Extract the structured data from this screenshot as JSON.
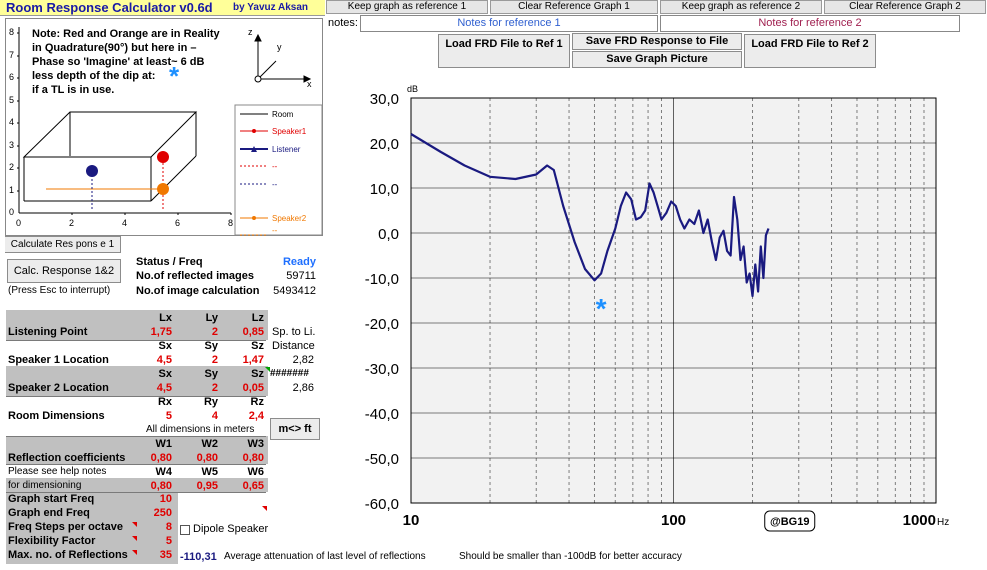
{
  "app": {
    "title": "Room Response Calculator  v0.6d",
    "author": "by Yavuz Aksan"
  },
  "toolbar": {
    "keep_ref1": "Keep graph as reference 1",
    "clear_ref1": "Clear Reference Graph 1",
    "keep_ref2": "Keep graph as reference 2",
    "clear_ref2": "Clear Reference Graph 2"
  },
  "notes": {
    "label": "notes:",
    "ref1": "Notes for reference 1",
    "ref2": "Notes for reference 2"
  },
  "buttons": {
    "load_ref1": "Load FRD File to Ref 1",
    "save_frd": "Save FRD Response to File",
    "save_pic": "Save Graph Picture",
    "load_ref2": "Load FRD File to Ref 2",
    "calc1": "Calculate Res pons e 1",
    "calc12": "Calc. Response 1&2",
    "unit_toggle": "m<> ft",
    "esc_hint": "(Press Esc to interrupt)"
  },
  "note_text": {
    "line1": "Note: Red and Orange are in Reality",
    "line2": "in Quadrature(90°) but here in –",
    "line3": "Phase so 'Imagine'  at least~ 6 dB",
    "line4": "less depth of the dip at:",
    "line5": "if a TL is in use."
  },
  "room_plot": {
    "y_ticks": [
      "8",
      "7",
      "6",
      "5",
      "4",
      "3",
      "2",
      "1",
      "0"
    ],
    "x_ticks": [
      "0",
      "2",
      "4",
      "6",
      "8"
    ],
    "axis_z": "z",
    "axis_y": "y",
    "axis_x": "x",
    "legend": [
      "Room",
      "Speaker1",
      "Listener",
      "--",
      "--",
      "Speaker2",
      "--"
    ],
    "colors": {
      "room": "#000000",
      "speaker1": "#e00000",
      "listener": "#1a1a80",
      "speaker2": "#f07800"
    }
  },
  "status": {
    "label": "Status / Freq",
    "value": "Ready",
    "reflected_label": "No.of reflected images",
    "reflected_value": "59711",
    "image_calc_label": "No.of image calculation",
    "image_calc_value": "5493412"
  },
  "table": {
    "listening": {
      "label": "Listening Point",
      "h": [
        "Lx",
        "Ly",
        "Lz"
      ],
      "v": [
        "1,75",
        "2",
        "0,85"
      ]
    },
    "sp_to_li": "Sp. to Li.",
    "distance": "Distance",
    "speaker1": {
      "label": "Speaker 1 Location",
      "h": [
        "Sx",
        "Sy",
        "Sz"
      ],
      "v": [
        "4,5",
        "2",
        "1,47"
      ],
      "dist": "2,82"
    },
    "speaker2": {
      "label": "Speaker 2 Location",
      "h": [
        "Sx",
        "Sy",
        "Sz"
      ],
      "v": [
        "4,5",
        "2",
        "0,05"
      ],
      "dist": "2,86",
      "overflow": "#######"
    },
    "room": {
      "label": "Room Dimensions",
      "h": [
        "Rx",
        "Ry",
        "Rz"
      ],
      "v": [
        "5",
        "4",
        "2,4"
      ]
    },
    "units_note": "All dimensions in meters",
    "refl": {
      "label": "Reflection coefficients",
      "h": [
        "W1",
        "W2",
        "W3"
      ],
      "v": [
        "0,80",
        "0,80",
        "0,80"
      ]
    },
    "help1": "Please see help notes",
    "help2": "for dimensioning",
    "refl2": {
      "h": [
        "W4",
        "W5",
        "W6"
      ],
      "v": [
        "0,80",
        "0,95",
        "0,65"
      ]
    },
    "params": [
      {
        "label": "Graph start Freq",
        "value": "10"
      },
      {
        "label": "Graph end Freq",
        "value": "250"
      },
      {
        "label": "Freq Steps per octave",
        "value": "8"
      },
      {
        "label": "Flexibility Factor",
        "value": "5"
      },
      {
        "label": "Max. no. of Reflections",
        "value": "35"
      }
    ],
    "dipole": "Dipole Speaker"
  },
  "footer": {
    "atten_value": "-110,31",
    "atten_label": "Average attenuation of last level of reflections",
    "accuracy": "Should be smaller than -100dB for better accuracy"
  },
  "chart_data": {
    "type": "line",
    "ylabel": "dB",
    "xscale": "log",
    "ylim": [
      -60,
      30
    ],
    "xlim": [
      10,
      1000
    ],
    "y_ticks": [
      "30,0",
      "20,0",
      "10,0",
      "0,0",
      "-10,0",
      "-20,0",
      "-30,0",
      "-40,0",
      "-50,0",
      "-60,0"
    ],
    "x_ticks": [
      "10",
      "100",
      "1000"
    ],
    "x_unit": "Hz",
    "watermark": "@BG19",
    "marker": "*",
    "line_color": "#1a1a80",
    "series": [
      {
        "x": [
          10,
          13,
          16,
          20,
          25,
          30,
          33,
          35,
          38,
          42,
          46,
          50,
          53,
          56,
          60,
          63,
          66,
          69,
          72,
          75,
          78,
          81,
          84,
          87,
          90,
          94,
          98,
          102,
          106,
          110,
          115,
          120,
          125,
          130,
          135,
          140,
          145,
          150,
          155,
          160,
          165,
          170,
          175,
          180,
          185,
          190,
          195,
          200,
          205,
          210,
          215,
          220,
          225,
          230
        ],
        "y": [
          22,
          18,
          15,
          12.5,
          12,
          13,
          15,
          14,
          6,
          -2,
          -8,
          -10.5,
          -9,
          -4,
          1,
          6,
          9,
          7.5,
          3,
          3.5,
          5,
          11,
          9,
          6,
          3,
          4.5,
          7,
          6,
          3,
          1,
          3,
          2,
          5,
          0,
          3,
          -2,
          -6,
          -1,
          0.5,
          -4,
          -5,
          8,
          3,
          -6,
          -3,
          -11,
          -9,
          -14,
          -7,
          -13,
          -3,
          -10,
          -0.5,
          1
        ]
      }
    ]
  }
}
